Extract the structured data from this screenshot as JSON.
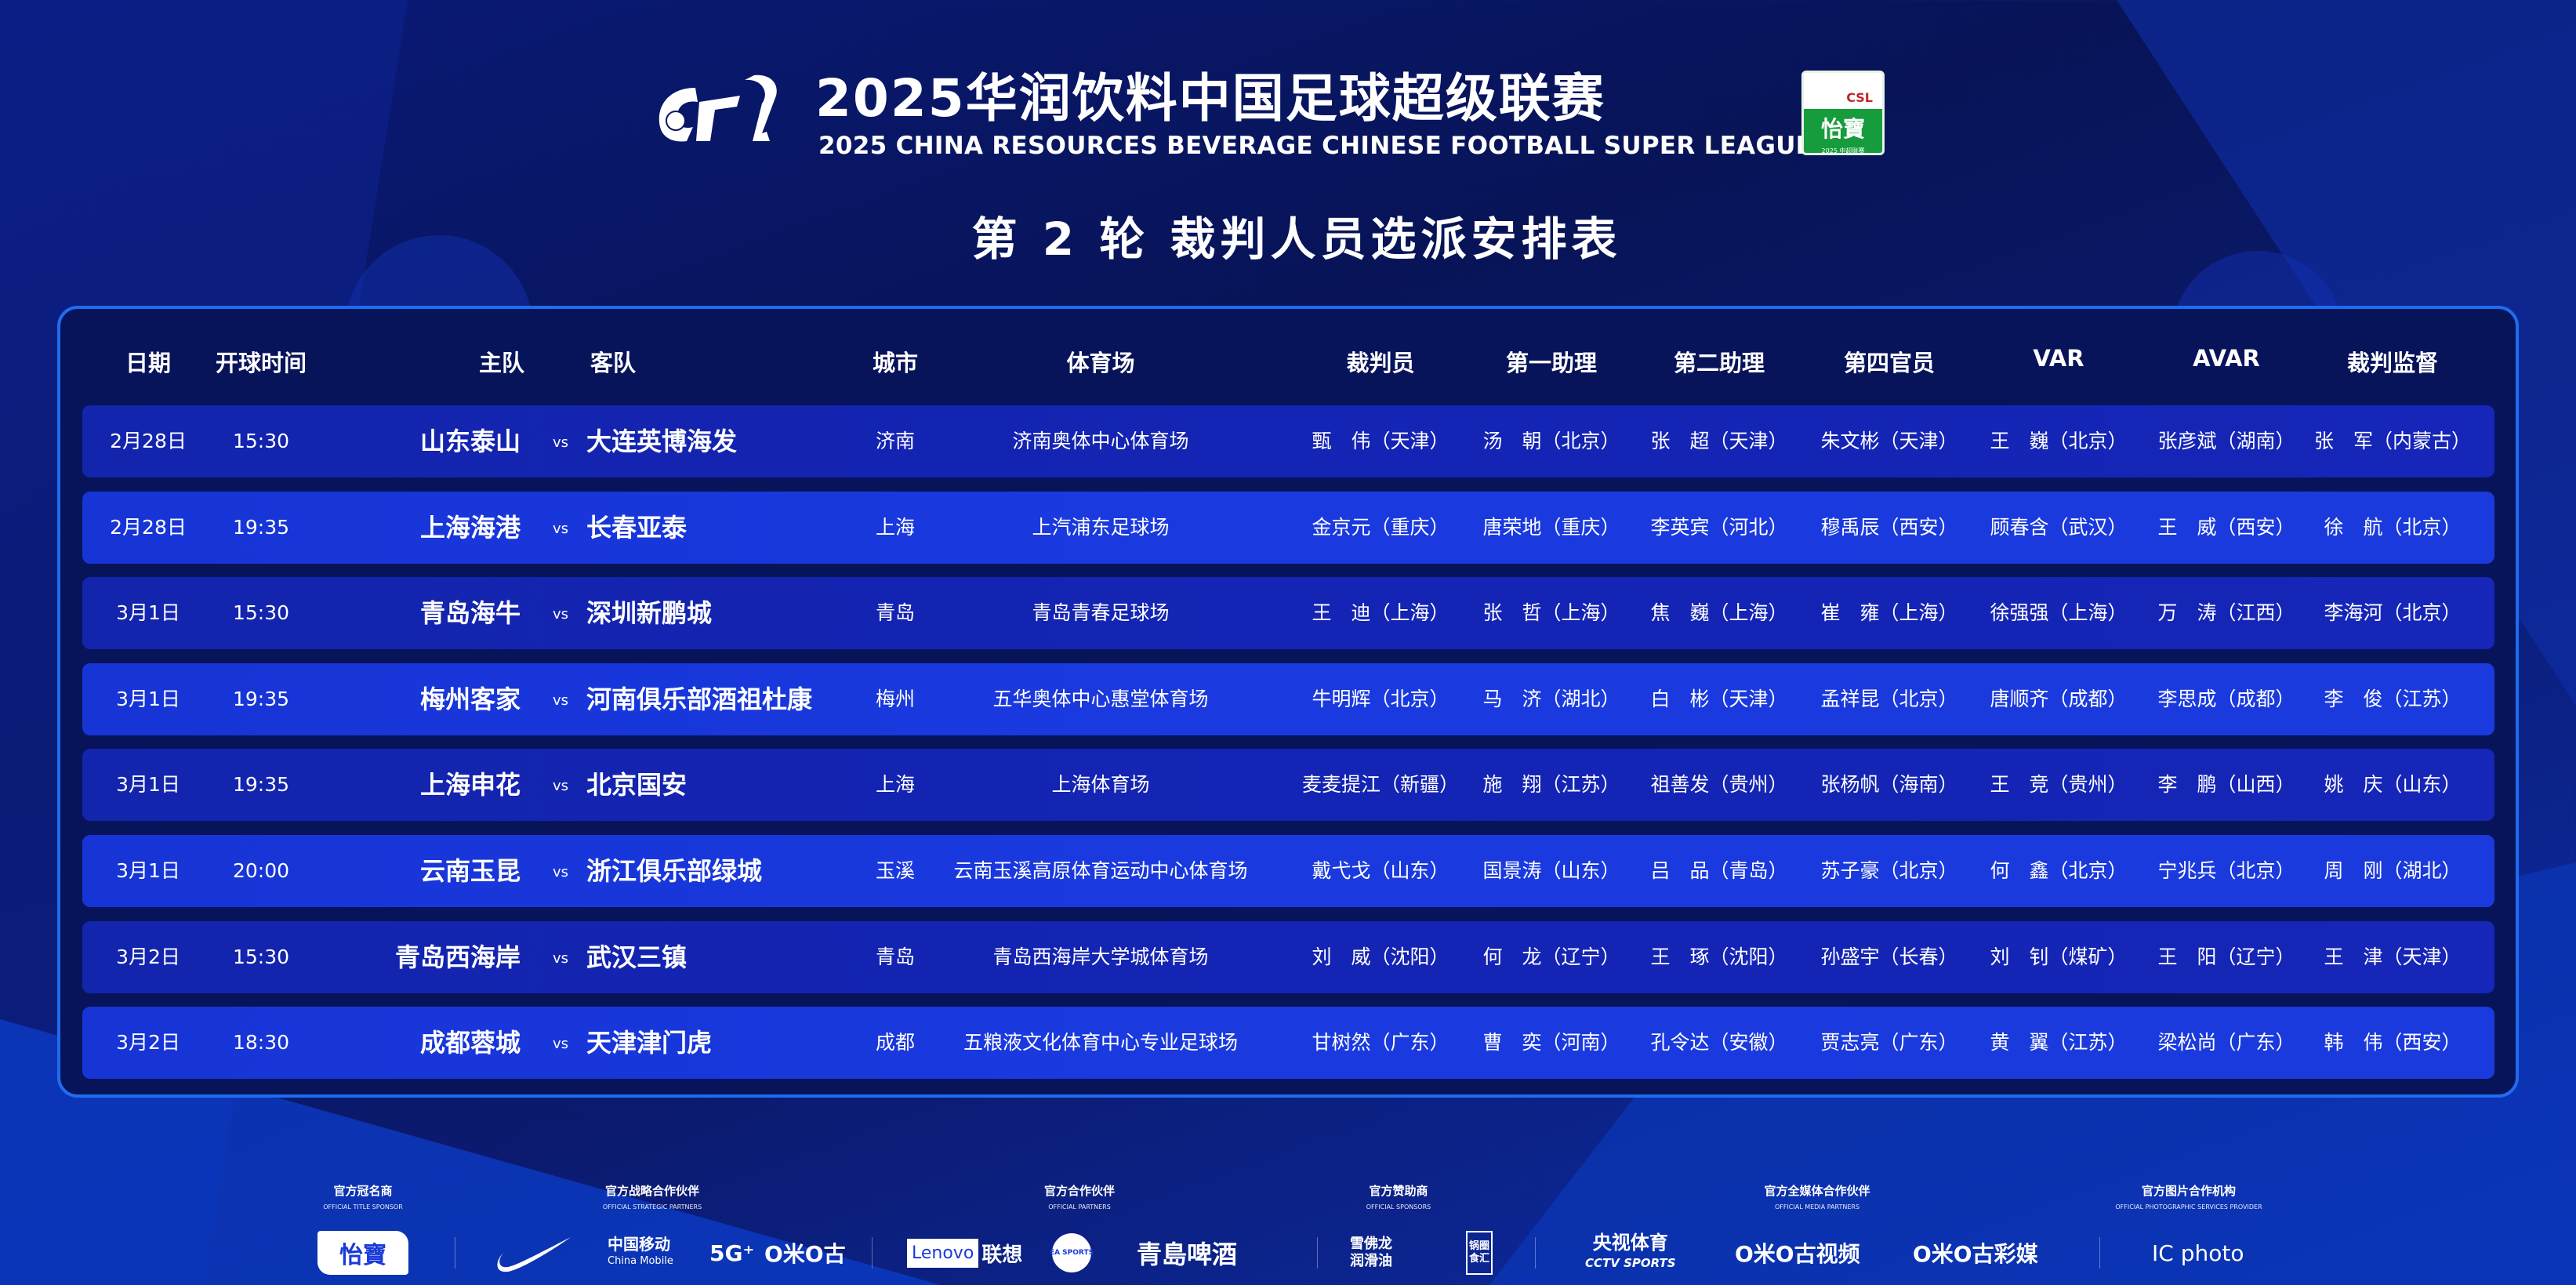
{
  "header": {
    "title_cn": "2025华润饮料中国足球超级联赛",
    "title_en": "2025 CHINA RESOURCES BEVERAGE CHINESE FOOTBALL SUPER LEAGUE",
    "round_title": "第 2 轮 裁判人员选派安排表",
    "cfl_logo": "CFL",
    "csl_badge": {
      "top": "CSL",
      "brand": "怡寶",
      "footer": "2025 中超联赛"
    }
  },
  "colors": {
    "background": "#08145a",
    "row_dark": "#1424b4",
    "row_light": "#1a3ae0",
    "panel_border": "#1f6cf0",
    "badge_green": "#169c3c"
  },
  "table": {
    "columns": [
      "日期",
      "开球时间",
      "主队",
      "客队",
      "城市",
      "体育场",
      "裁判员",
      "第一助理",
      "第二助理",
      "第四官员",
      "VAR",
      "AVAR",
      "裁判监督"
    ],
    "vs": "vs",
    "rows": [
      {
        "date": "2月28日",
        "time": "15:30",
        "home": "山东泰山",
        "away": "大连英博海发",
        "city": "济南",
        "stadium": "济南奥体中心体育场",
        "referee": "甄　伟（天津）",
        "ar1": "汤　朝（北京）",
        "ar2": "张　超（天津）",
        "fourth": "朱文彬（天津）",
        "var": "王　巍（北京）",
        "avar": "张彦斌（湖南）",
        "supervisor": "张　军（内蒙古）"
      },
      {
        "date": "2月28日",
        "time": "19:35",
        "home": "上海海港",
        "away": "长春亚泰",
        "city": "上海",
        "stadium": "上汽浦东足球场",
        "referee": "金京元（重庆）",
        "ar1": "唐荣地（重庆）",
        "ar2": "李英宾（河北）",
        "fourth": "穆禹辰（西安）",
        "var": "顾春含（武汉）",
        "avar": "王　威（西安）",
        "supervisor": "徐　航（北京）"
      },
      {
        "date": "3月1日",
        "time": "15:30",
        "home": "青岛海牛",
        "away": "深圳新鹏城",
        "city": "青岛",
        "stadium": "青岛青春足球场",
        "referee": "王　迪（上海）",
        "ar1": "张　哲（上海）",
        "ar2": "焦　巍（上海）",
        "fourth": "崔　雍（上海）",
        "var": "徐强强（上海）",
        "avar": "万　涛（江西）",
        "supervisor": "李海河（北京）"
      },
      {
        "date": "3月1日",
        "time": "19:35",
        "home": "梅州客家",
        "away": "河南俱乐部酒祖杜康",
        "city": "梅州",
        "stadium": "五华奥体中心惠堂体育场",
        "referee": "牛明辉（北京）",
        "ar1": "马　济（湖北）",
        "ar2": "白　彬（天津）",
        "fourth": "孟祥昆（北京）",
        "var": "唐顺齐（成都）",
        "avar": "李思成（成都）",
        "supervisor": "李　俊（江苏）"
      },
      {
        "date": "3月1日",
        "time": "19:35",
        "home": "上海申花",
        "away": "北京国安",
        "city": "上海",
        "stadium": "上海体育场",
        "referee": "麦麦提江（新疆）",
        "ar1": "施　翔（江苏）",
        "ar2": "祖善发（贵州）",
        "fourth": "张杨帆（海南）",
        "var": "王　竞（贵州）",
        "avar": "李　鹏（山西）",
        "supervisor": "姚　庆（山东）"
      },
      {
        "date": "3月1日",
        "time": "20:00",
        "home": "云南玉昆",
        "away": "浙江俱乐部绿城",
        "city": "玉溪",
        "stadium": "云南玉溪高原体育运动中心体育场",
        "referee": "戴弋戈（山东）",
        "ar1": "国景涛（山东）",
        "ar2": "吕　品（青岛）",
        "fourth": "苏子豪（北京）",
        "var": "何　鑫（北京）",
        "avar": "宁兆兵（北京）",
        "supervisor": "周　刚（湖北）"
      },
      {
        "date": "3月2日",
        "time": "15:30",
        "home": "青岛西海岸",
        "away": "武汉三镇",
        "city": "青岛",
        "stadium": "青岛西海岸大学城体育场",
        "referee": "刘　威（沈阳）",
        "ar1": "何　龙（辽宁）",
        "ar2": "王　琢（沈阳）",
        "fourth": "孙盛宇（长春）",
        "var": "刘　钊（煤矿）",
        "avar": "王　阳（辽宁）",
        "supervisor": "王　津（天津）"
      },
      {
        "date": "3月2日",
        "time": "18:30",
        "home": "成都蓉城",
        "away": "天津津门虎",
        "city": "成都",
        "stadium": "五粮液文化体育中心专业足球场",
        "referee": "甘树然（广东）",
        "ar1": "曹　奕（河南）",
        "ar2": "孔令达（安徽）",
        "fourth": "贾志亮（广东）",
        "var": "黄　翼（江苏）",
        "avar": "梁松尚（广东）",
        "supervisor": "韩　伟（西安）"
      }
    ]
  },
  "sponsors": [
    {
      "cn": "官方冠名商",
      "en": "OFFICIAL TITLE SPONSOR"
    },
    {
      "cn": "官方战略合作伙伴",
      "en": "OFFICIAL STRATEGIC PARTNERS"
    },
    {
      "cn": "官方合作伙伴",
      "en": "OFFICIAL PARTNERS"
    },
    {
      "cn": "官方赞助商",
      "en": "OFFICIAL SPONSORS"
    },
    {
      "cn": "官方全媒体合作伙伴",
      "en": "OFFICIAL MEDIA PARTNERS"
    },
    {
      "cn": "官方图片合作机构",
      "en": "OFFICIAL PHOTOGRAPHIC SERVICES PROVIDER"
    }
  ],
  "sponsor_logos": {
    "yibao": "怡寶",
    "nike": "nike-swoosh",
    "china_mobile_cn": "中国移动",
    "china_mobile_en": "China Mobile",
    "fiveg": "5G⁺",
    "migu": "O米O古",
    "lenovo": "Lenovo",
    "lenovo_cn": "联想",
    "ea": "EA SPORTS",
    "tsingtao": "青島啤酒",
    "chevron_cn": "雪佛龙润滑油",
    "guoyuan": "锅圈食汇",
    "cctv_cn": "央视体育",
    "cctv_en": "CCTV SPORTS",
    "migu_video": "O米O古视频",
    "migu_caimei": "O米O古彩媒",
    "icphoto": "IC photo"
  }
}
